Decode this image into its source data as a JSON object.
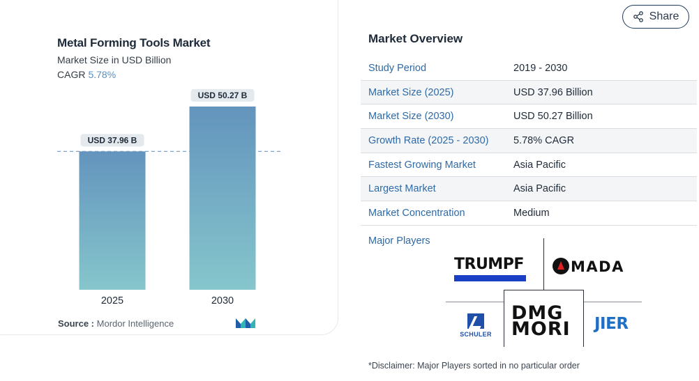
{
  "chart_card": {
    "title": "Metal Forming Tools Market",
    "subtitle": "Market Size in USD Billion",
    "cagr_label": "CAGR",
    "cagr_value": "5.78%",
    "source_label": "Source :",
    "source_value": "Mordor Intelligence",
    "source_logo_icon": "mordor-intelligence-logo"
  },
  "chart_data": {
    "type": "bar",
    "categories": [
      "2025",
      "2030"
    ],
    "values": [
      37.96,
      50.27
    ],
    "data_labels": [
      "USD 37.96 B",
      "USD 50.27 B"
    ],
    "reference_line": {
      "value": 37.96,
      "style": "dashed"
    },
    "ylim": [
      0,
      60
    ],
    "colors": {
      "bar_top": "#6394bd",
      "bar_bottom": "#86c6cc",
      "reference_line": "#7fa4c9"
    }
  },
  "share": {
    "label": "Share",
    "icon": "share-icon"
  },
  "overview": {
    "title": "Market Overview",
    "rows": [
      {
        "label": "Study Period",
        "value": "2019 - 2030"
      },
      {
        "label": "Market Size (2025)",
        "value": "USD 37.96 Billion"
      },
      {
        "label": "Market Size (2030)",
        "value": "USD 50.27 Billion"
      },
      {
        "label": "Growth Rate (2025 - 2030)",
        "value": "5.78% CAGR"
      },
      {
        "label": "Fastest Growing Market",
        "value": "Asia Pacific"
      },
      {
        "label": "Largest Market",
        "value": "Asia Pacific"
      },
      {
        "label": "Market Concentration",
        "value": "Medium"
      }
    ],
    "major_players_label": "Major Players",
    "players": [
      "TRUMPF",
      "AMADA",
      "DMG MORI",
      "SCHULER",
      "JIER"
    ],
    "disclaimer": "*Disclaimer: Major Players sorted in no particular order"
  }
}
